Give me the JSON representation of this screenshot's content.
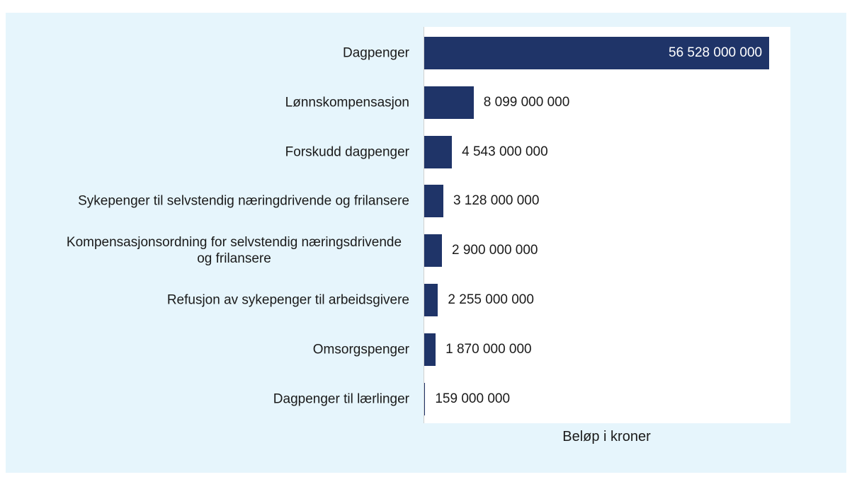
{
  "chart_data": {
    "type": "bar",
    "orientation": "horizontal",
    "x_label": "Beløp i kroner",
    "categories": [
      "Dagpenger",
      "Lønnskompensasjon",
      "Forskudd dagpenger",
      "Sykepenger til selvstendig næringdrivende og frilansere",
      "Kompensasjonsordning for selvstendig næringsdrivende og frilansere",
      "Refusjon av sykepenger til arbeidsgivere",
      "Omsorgspenger",
      "Dagpenger til lærlinger"
    ],
    "values": [
      56528000000,
      8099000000,
      4543000000,
      3128000000,
      2900000000,
      2255000000,
      1870000000,
      159000000
    ],
    "value_labels": [
      "56 528 000 000",
      "8 099 000 000",
      "4 543 000 000",
      "3 128 000 000",
      "2 900 000 000",
      "2 255 000 000",
      "1 870 000 000",
      "159 000 000"
    ],
    "color": "#1f3468",
    "xlim": [
      0,
      60000000000
    ]
  }
}
